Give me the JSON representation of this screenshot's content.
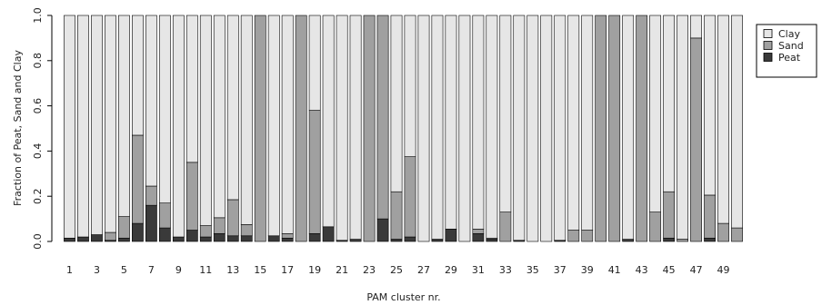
{
  "chart_data": {
    "type": "bar",
    "stacked": true,
    "xlabel": "PAM cluster nr.",
    "ylabel": "Fraction of Peat, Sand and Clay",
    "ylim": [
      0,
      1
    ],
    "yticks": [
      "0.0",
      "0.2",
      "0.4",
      "0.6",
      "0.8",
      "1.0"
    ],
    "categories": [
      "1",
      "2",
      "3",
      "4",
      "5",
      "6",
      "7",
      "8",
      "9",
      "10",
      "11",
      "12",
      "13",
      "14",
      "15",
      "16",
      "17",
      "18",
      "19",
      "20",
      "21",
      "22",
      "23",
      "24",
      "25",
      "26",
      "27",
      "28",
      "29",
      "30",
      "31",
      "32",
      "33",
      "34",
      "35",
      "36",
      "37",
      "38",
      "39",
      "40",
      "41",
      "42",
      "43",
      "44",
      "45",
      "46",
      "47",
      "48",
      "49",
      "50"
    ],
    "xtick_labels": [
      "1",
      "3",
      "5",
      "7",
      "9",
      "11",
      "13",
      "15",
      "17",
      "19",
      "21",
      "23",
      "25",
      "27",
      "29",
      "31",
      "33",
      "35",
      "37",
      "39",
      "41",
      "43",
      "45",
      "47",
      "49"
    ],
    "series": [
      {
        "name": "Peat",
        "color": "#3a3a3a",
        "values": [
          0.015,
          0.02,
          0.03,
          0.005,
          0.015,
          0.08,
          0.16,
          0.06,
          0.02,
          0.05,
          0.02,
          0.035,
          0.025,
          0.025,
          0.0,
          0.025,
          0.015,
          0.0,
          0.035,
          0.065,
          0.005,
          0.005,
          0.0,
          0.1,
          0.01,
          0.02,
          0.0,
          0.01,
          0.055,
          0.0,
          0.035,
          0.01,
          0.0,
          0.005,
          0.0,
          0.0,
          0.005,
          0.0,
          0.0,
          0.0,
          0.0,
          0.005,
          0.0,
          0.0,
          0.015,
          0.0,
          0.0,
          0.015,
          0.0,
          0.0
        ]
      },
      {
        "name": "Sand",
        "color": "#a0a0a0",
        "values": [
          0.0,
          0.0,
          0.0,
          0.035,
          0.095,
          0.39,
          0.085,
          0.11,
          0.0,
          0.3,
          0.05,
          0.07,
          0.16,
          0.05,
          1.0,
          0.0,
          0.02,
          1.0,
          0.545,
          0.0,
          0.0,
          0.005,
          1.0,
          0.9,
          0.21,
          0.355,
          0.0,
          0.0,
          0.0,
          0.0,
          0.02,
          0.005,
          0.13,
          0.0,
          0.0,
          0.0,
          0.0,
          0.05,
          0.05,
          1.0,
          1.0,
          0.005,
          1.0,
          0.13,
          0.205,
          0.01,
          0.9,
          0.19,
          0.08,
          0.06
        ]
      },
      {
        "name": "Clay",
        "color": "#e6e6e6",
        "values": [
          0.985,
          0.98,
          0.97,
          0.96,
          0.89,
          0.53,
          0.755,
          0.83,
          0.98,
          0.65,
          0.93,
          0.895,
          0.815,
          0.925,
          0.0,
          0.975,
          0.965,
          0.0,
          0.42,
          0.935,
          0.995,
          0.99,
          0.0,
          0.0,
          0.78,
          0.625,
          1.0,
          0.99,
          0.945,
          1.0,
          0.945,
          0.985,
          0.87,
          0.995,
          1.0,
          1.0,
          0.995,
          0.95,
          0.95,
          0.0,
          0.0,
          0.99,
          0.0,
          0.87,
          0.78,
          0.99,
          0.1,
          0.795,
          0.92,
          0.94
        ]
      }
    ],
    "legend": {
      "position": "top-right",
      "entries": [
        "Clay",
        "Sand",
        "Peat"
      ]
    },
    "grid": false
  }
}
